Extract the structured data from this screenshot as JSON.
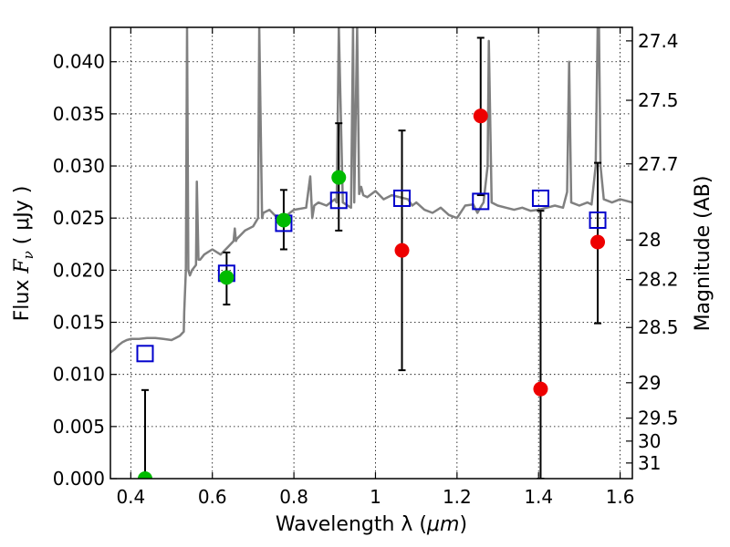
{
  "chart_data": {
    "type": "scatter",
    "xlabel_prefix": "Wavelength  λ (",
    "xlabel_unit": "μm",
    "xlabel_suffix": ")",
    "ylabel_prefix": "Flux  ",
    "ylabel_var": "F",
    "ylabel_sub": "ν",
    "ylabel_suffix": "  ( μJy )",
    "y2label": "Magnitude (AB)",
    "xlim": [
      0.35,
      1.63
    ],
    "ylim": [
      0.0,
      0.0433
    ],
    "xticks": [
      0.4,
      0.6,
      0.8,
      1.0,
      1.2,
      1.4,
      1.6
    ],
    "xtick_labels": [
      "0.4",
      "0.6",
      "0.8",
      "1",
      "1.2",
      "1.4",
      "1.6"
    ],
    "yticks": [
      0.0,
      0.005,
      0.01,
      0.015,
      0.02,
      0.025,
      0.03,
      0.035,
      0.04
    ],
    "ytick_labels": [
      "0.000",
      "0.005",
      "0.010",
      "0.015",
      "0.020",
      "0.025",
      "0.030",
      "0.035",
      "0.040"
    ],
    "y2ticks": [
      {
        "flux": 0.042,
        "label": "27.4"
      },
      {
        "flux": 0.0363,
        "label": "27.5"
      },
      {
        "flux": 0.0302,
        "label": "27.7"
      },
      {
        "flux": 0.0229,
        "label": "28"
      },
      {
        "flux": 0.0191,
        "label": "28.2"
      },
      {
        "flux": 0.0145,
        "label": "28.5"
      },
      {
        "flux": 0.0092,
        "label": "29"
      },
      {
        "flux": 0.0058,
        "label": "29.5"
      },
      {
        "flux": 0.0036,
        "label": "30"
      },
      {
        "flux": 0.0015,
        "label": "31"
      }
    ],
    "grid": true,
    "colors": {
      "model": "#808080",
      "green": "#00bb00",
      "red": "#ee0000",
      "box": "#0000cc",
      "errorbar": "#000000"
    },
    "model_spectrum": {
      "x": [
        0.35,
        0.36,
        0.37,
        0.38,
        0.39,
        0.4,
        0.42,
        0.44,
        0.46,
        0.48,
        0.5,
        0.51,
        0.52,
        0.53,
        0.531,
        0.535,
        0.538,
        0.541,
        0.545,
        0.55,
        0.56,
        0.562,
        0.566,
        0.57,
        0.58,
        0.6,
        0.62,
        0.64,
        0.652,
        0.655,
        0.658,
        0.66,
        0.68,
        0.7,
        0.712,
        0.715,
        0.722,
        0.725,
        0.74,
        0.76,
        0.78,
        0.8,
        0.83,
        0.84,
        0.845,
        0.85,
        0.86,
        0.88,
        0.9,
        0.905,
        0.91,
        0.92,
        0.94,
        0.945,
        0.948,
        0.955,
        0.96,
        0.965,
        0.97,
        0.98,
        1.0,
        1.02,
        1.04,
        1.06,
        1.08,
        1.09,
        1.1,
        1.12,
        1.14,
        1.16,
        1.18,
        1.2,
        1.22,
        1.24,
        1.25,
        1.26,
        1.265,
        1.275,
        1.278,
        1.285,
        1.3,
        1.32,
        1.34,
        1.36,
        1.38,
        1.4,
        1.42,
        1.44,
        1.46,
        1.47,
        1.475,
        1.48,
        1.5,
        1.52,
        1.53,
        1.54,
        1.545,
        1.548,
        1.552,
        1.56,
        1.58,
        1.6,
        1.63
      ],
      "y": [
        0.0121,
        0.0124,
        0.0128,
        0.0131,
        0.0133,
        0.0134,
        0.0134,
        0.0135,
        0.0135,
        0.0134,
        0.0133,
        0.0135,
        0.0137,
        0.0141,
        0.016,
        0.02,
        0.0433,
        0.02,
        0.0195,
        0.02,
        0.0205,
        0.0285,
        0.021,
        0.021,
        0.0215,
        0.022,
        0.0215,
        0.0223,
        0.0228,
        0.024,
        0.0228,
        0.023,
        0.0238,
        0.0242,
        0.025,
        0.0433,
        0.025,
        0.0255,
        0.0258,
        0.025,
        0.0252,
        0.0258,
        0.026,
        0.029,
        0.025,
        0.0262,
        0.0265,
        0.0262,
        0.0268,
        0.0265,
        0.0433,
        0.0265,
        0.026,
        0.0433,
        0.0265,
        0.0433,
        0.0273,
        0.028,
        0.0272,
        0.027,
        0.0276,
        0.0268,
        0.0272,
        0.027,
        0.0268,
        0.0262,
        0.0265,
        0.0258,
        0.0255,
        0.026,
        0.0253,
        0.025,
        0.0262,
        0.0263,
        0.0255,
        0.0262,
        0.0265,
        0.03,
        0.042,
        0.0265,
        0.0262,
        0.026,
        0.0258,
        0.026,
        0.0257,
        0.0258,
        0.026,
        0.0262,
        0.026,
        0.0275,
        0.04,
        0.0265,
        0.0262,
        0.0265,
        0.0263,
        0.03,
        0.0433,
        0.0433,
        0.03,
        0.0268,
        0.0265,
        0.0268,
        0.0265
      ]
    },
    "green_points": [
      {
        "x": 0.435,
        "y": 0.0
      },
      {
        "x": 0.635,
        "y": 0.0193
      },
      {
        "x": 0.775,
        "y": 0.0248
      },
      {
        "x": 0.91,
        "y": 0.0289
      }
    ],
    "red_points": [
      {
        "x": 1.065,
        "y": 0.0219
      },
      {
        "x": 1.258,
        "y": 0.0348
      },
      {
        "x": 1.405,
        "y": 0.0086
      },
      {
        "x": 1.545,
        "y": 0.0227
      }
    ],
    "box_points": [
      {
        "x": 0.435,
        "y": 0.012
      },
      {
        "x": 0.635,
        "y": 0.0197
      },
      {
        "x": 0.775,
        "y": 0.0245
      },
      {
        "x": 0.91,
        "y": 0.0267
      },
      {
        "x": 1.065,
        "y": 0.0269
      },
      {
        "x": 1.258,
        "y": 0.0266
      },
      {
        "x": 1.405,
        "y": 0.0269
      },
      {
        "x": 1.545,
        "y": 0.0248
      }
    ],
    "error_bars": [
      {
        "x": 0.435,
        "low": 0.0,
        "high": 0.0085
      },
      {
        "x": 0.635,
        "low": 0.0167,
        "high": 0.0217
      },
      {
        "x": 0.775,
        "low": 0.022,
        "high": 0.0277
      },
      {
        "x": 0.91,
        "low": 0.0238,
        "high": 0.0341
      },
      {
        "x": 1.065,
        "low": 0.0104,
        "high": 0.0334
      },
      {
        "x": 1.258,
        "low": 0.0272,
        "high": 0.0423
      },
      {
        "x": 1.405,
        "low": 0.0,
        "high": 0.0257
      },
      {
        "x": 1.545,
        "low": 0.0149,
        "high": 0.0303
      }
    ]
  }
}
